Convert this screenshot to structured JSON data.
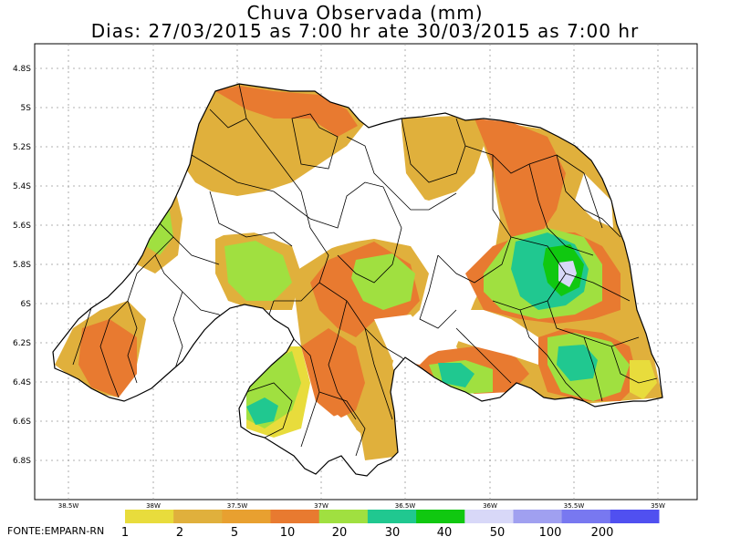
{
  "title": "Chuva Observada (mm)",
  "subtitle": "Dias: 27/03/2015 as 7:00 hr ate 30/03/2015 as 7:00 hr",
  "source": "FONTE:EMPARN-RN",
  "lat_labels": [
    "4.8S",
    "5S",
    "5.2S",
    "5.4S",
    "5.6S",
    "5.8S",
    "6S",
    "6.2S",
    "6.4S",
    "6.6S",
    "6.8S"
  ],
  "lon_labels": [
    "38.5W",
    "38W",
    "37.5W",
    "37W",
    "36.5W",
    "36W",
    "35.5W",
    "35W"
  ],
  "legend": {
    "thresholds": [
      "1",
      "2",
      "5",
      "10",
      "20",
      "30",
      "40",
      "50",
      "100",
      "200"
    ],
    "colors": [
      "#e8dc3c",
      "#e0b03c",
      "#e8a030",
      "#e87a30",
      "#a0e040",
      "#20c890",
      "#10c810",
      "#d8d8f8",
      "#a0a0f0",
      "#7878f0",
      "#5050f0"
    ]
  },
  "colors": {
    "border": "#000000",
    "grid": "#999999",
    "background": "#ffffff"
  }
}
